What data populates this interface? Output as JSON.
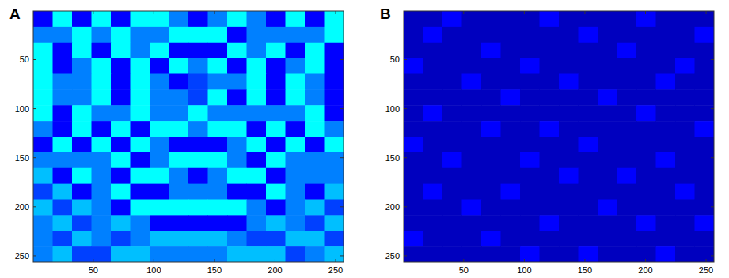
{
  "chart_data": [
    {
      "type": "heatmap",
      "title": "A",
      "color": "jet",
      "tick_labels": true,
      "xlim": [
        0.5,
        256.5
      ],
      "ylim": [
        0.5,
        256.5
      ],
      "xticks": [
        50,
        100,
        150,
        200,
        250
      ],
      "yticks": [
        50,
        100,
        150,
        200,
        250
      ],
      "color_range": [
        0,
        16
      ],
      "cells": [
        [
          2,
          6,
          2,
          6,
          2,
          6,
          6,
          4,
          2,
          4,
          6,
          4,
          2,
          6,
          2,
          6
        ],
        [
          4,
          4,
          6,
          4,
          6,
          4,
          4,
          6,
          6,
          6,
          2,
          4,
          4,
          4,
          4,
          6
        ],
        [
          6,
          2,
          6,
          2,
          6,
          4,
          6,
          2,
          2,
          2,
          6,
          4,
          6,
          2,
          6,
          2
        ],
        [
          6,
          2,
          4,
          6,
          2,
          6,
          2,
          6,
          4,
          6,
          2,
          6,
          2,
          4,
          6,
          2
        ],
        [
          6,
          4,
          4,
          6,
          2,
          6,
          4,
          2,
          3,
          4,
          4,
          6,
          2,
          6,
          4,
          2
        ],
        [
          6,
          4,
          4,
          6,
          2,
          6,
          4,
          4,
          3,
          6,
          2,
          6,
          2,
          6,
          4,
          2
        ],
        [
          6,
          2,
          6,
          4,
          4,
          6,
          4,
          4,
          6,
          4,
          4,
          4,
          4,
          4,
          6,
          2
        ],
        [
          4,
          2,
          6,
          2,
          6,
          2,
          6,
          6,
          4,
          6,
          6,
          2,
          6,
          2,
          6,
          4
        ],
        [
          2,
          6,
          2,
          6,
          2,
          6,
          4,
          2,
          2,
          2,
          4,
          6,
          2,
          6,
          2,
          6
        ],
        [
          4,
          4,
          4,
          4,
          6,
          2,
          4,
          6,
          6,
          6,
          4,
          2,
          6,
          4,
          4,
          4
        ],
        [
          5,
          2,
          6,
          4,
          2,
          6,
          6,
          4,
          2,
          4,
          6,
          6,
          2,
          4,
          4,
          4
        ],
        [
          3,
          5,
          2,
          4,
          6,
          2,
          2,
          4,
          4,
          4,
          2,
          2,
          6,
          4,
          2,
          5
        ],
        [
          5,
          3,
          5,
          4,
          2,
          6,
          6,
          6,
          6,
          6,
          6,
          4,
          2,
          4,
          5,
          3
        ],
        [
          4,
          5,
          3,
          4,
          5,
          4,
          2,
          2,
          2,
          2,
          2,
          4,
          5,
          4,
          3,
          5
        ],
        [
          4,
          3,
          5,
          4,
          3,
          4,
          5,
          5,
          5,
          5,
          4,
          3,
          3,
          5,
          5,
          3
        ],
        [
          4,
          5,
          3,
          3,
          5,
          5,
          4,
          4,
          4,
          4,
          5,
          5,
          5,
          3,
          4,
          5
        ]
      ]
    },
    {
      "type": "heatmap",
      "title": "B",
      "color": "jet",
      "tick_labels": true,
      "xlim": [
        0.5,
        256.5
      ],
      "ylim": [
        0.5,
        256.5
      ],
      "xticks": [
        50,
        100,
        150,
        200,
        250
      ],
      "yticks": [
        50,
        100,
        150,
        200,
        250
      ],
      "color_range": [
        0,
        16
      ],
      "cells": [
        [
          1,
          1,
          2,
          1,
          1,
          1,
          1,
          2,
          1,
          1,
          1,
          1,
          2,
          1,
          1,
          1
        ],
        [
          1,
          2,
          1,
          1,
          1,
          1,
          1,
          1,
          1,
          2,
          1,
          1,
          1,
          1,
          1,
          2
        ],
        [
          1,
          1,
          1,
          1,
          2,
          1,
          1,
          1,
          1,
          1,
          1,
          2,
          1,
          1,
          1,
          1
        ],
        [
          2,
          1,
          1,
          1,
          1,
          1,
          2,
          1,
          1,
          1,
          1,
          1,
          1,
          1,
          2,
          1
        ],
        [
          1,
          1,
          1,
          2,
          1,
          1,
          1,
          1,
          2,
          1,
          1,
          1,
          1,
          2,
          1,
          1
        ],
        [
          1,
          1,
          1,
          1,
          1,
          2,
          1,
          1,
          1,
          1,
          2,
          1,
          1,
          1,
          1,
          1
        ],
        [
          1,
          2,
          1,
          1,
          1,
          1,
          1,
          1,
          1,
          1,
          1,
          1,
          2,
          1,
          1,
          1
        ],
        [
          1,
          1,
          1,
          1,
          2,
          1,
          1,
          2,
          1,
          1,
          1,
          1,
          1,
          1,
          1,
          2
        ],
        [
          2,
          1,
          1,
          1,
          1,
          1,
          1,
          1,
          1,
          2,
          1,
          1,
          1,
          1,
          1,
          1
        ],
        [
          1,
          1,
          2,
          1,
          1,
          1,
          2,
          1,
          1,
          1,
          1,
          1,
          1,
          2,
          1,
          1
        ],
        [
          1,
          1,
          1,
          1,
          1,
          1,
          1,
          1,
          2,
          1,
          1,
          2,
          1,
          1,
          1,
          1
        ],
        [
          1,
          2,
          1,
          1,
          1,
          2,
          1,
          1,
          1,
          1,
          1,
          1,
          1,
          1,
          2,
          1
        ],
        [
          1,
          1,
          1,
          2,
          1,
          1,
          1,
          1,
          1,
          1,
          2,
          1,
          1,
          1,
          1,
          1
        ],
        [
          1,
          1,
          1,
          1,
          1,
          1,
          1,
          2,
          1,
          1,
          1,
          1,
          2,
          1,
          1,
          2
        ],
        [
          2,
          1,
          1,
          1,
          2,
          1,
          1,
          1,
          1,
          1,
          1,
          1,
          1,
          1,
          1,
          1
        ],
        [
          1,
          1,
          1,
          1,
          1,
          1,
          2,
          1,
          1,
          2,
          1,
          1,
          1,
          2,
          1,
          1
        ]
      ]
    }
  ]
}
